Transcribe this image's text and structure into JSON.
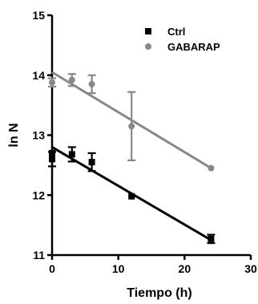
{
  "chart_data": {
    "type": "scatter",
    "xlabel": "Tiempo (h)",
    "ylabel": "ln N",
    "xlim": [
      0,
      30
    ],
    "ylim": [
      11,
      15
    ],
    "x_ticks": [
      0,
      10,
      20,
      30
    ],
    "y_ticks": [
      11,
      12,
      13,
      14,
      15
    ],
    "grid": false,
    "legend_position": "top-right",
    "series": [
      {
        "name": "Ctrl",
        "marker": "square",
        "color": "#000000",
        "points": [
          {
            "x": 0,
            "y": 12.6,
            "err": 0.12
          },
          {
            "x": 0,
            "y": 12.7,
            "err": 0.0
          },
          {
            "x": 3,
            "y": 12.68,
            "err": 0.12
          },
          {
            "x": 6,
            "y": 12.55,
            "err": 0.15
          },
          {
            "x": 12,
            "y": 11.98,
            "err": 0.0
          },
          {
            "x": 24,
            "y": 11.27,
            "err": 0.07
          }
        ],
        "fit": {
          "x": [
            0,
            24
          ],
          "y": [
            12.8,
            11.25
          ]
        }
      },
      {
        "name": "GABARAP",
        "marker": "circle",
        "color": "#888888",
        "points": [
          {
            "x": 0,
            "y": 13.88,
            "err": 0.07
          },
          {
            "x": 3,
            "y": 13.92,
            "err": 0.1
          },
          {
            "x": 6,
            "y": 13.85,
            "err": 0.15
          },
          {
            "x": 12,
            "y": 13.15,
            "err": 0.57
          },
          {
            "x": 24,
            "y": 12.45,
            "err": 0.0
          }
        ],
        "fit": {
          "x": [
            0,
            24
          ],
          "y": [
            14.05,
            12.45
          ]
        }
      }
    ]
  }
}
